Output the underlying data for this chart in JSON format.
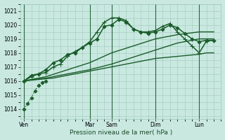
{
  "xlabel": "Pression niveau de la mer( hPa )",
  "bg_color": "#c8e8e0",
  "grid_color": "#9fc8bc",
  "line_color": "#1a5c2a",
  "ylim": [
    1013.3,
    1021.5
  ],
  "yticks": [
    1014,
    1015,
    1016,
    1017,
    1018,
    1019,
    1020,
    1021
  ],
  "xtick_labels": [
    "Ven",
    "Mar",
    "Sam",
    "Dim",
    "Lun"
  ],
  "xtick_positions": [
    0,
    9,
    12,
    18,
    24
  ],
  "vlines": [
    0,
    9,
    12,
    18,
    24
  ],
  "xlim": [
    -0.5,
    27
  ],
  "series": [
    {
      "x": [
        0,
        1,
        2,
        3,
        4,
        5,
        6,
        7,
        8,
        9,
        10,
        11,
        12,
        13,
        14,
        15,
        16,
        17,
        18,
        19,
        20,
        21,
        22,
        23,
        24,
        25,
        26
      ],
      "y": [
        1016.0,
        1016.05,
        1016.1,
        1016.15,
        1016.2,
        1016.3,
        1016.4,
        1016.5,
        1016.6,
        1016.7,
        1016.8,
        1016.9,
        1017.0,
        1017.1,
        1017.2,
        1017.3,
        1017.4,
        1017.5,
        1017.6,
        1017.65,
        1017.7,
        1017.75,
        1017.8,
        1017.85,
        1017.9,
        1018.0,
        1018.0
      ],
      "style": "-",
      "marker": null,
      "markersize": 0,
      "linewidth": 1.0
    },
    {
      "x": [
        0,
        3,
        6,
        9,
        12,
        15,
        18,
        21,
        24,
        26
      ],
      "y": [
        1016.0,
        1016.2,
        1016.5,
        1016.8,
        1017.2,
        1017.7,
        1018.2,
        1018.7,
        1019.0,
        1019.0
      ],
      "style": "-",
      "marker": null,
      "markersize": 0,
      "linewidth": 1.0
    },
    {
      "x": [
        0,
        3,
        6,
        9,
        12,
        15,
        18,
        21,
        24,
        26
      ],
      "y": [
        1016.0,
        1016.3,
        1016.8,
        1017.3,
        1018.0,
        1018.5,
        1019.0,
        1019.3,
        1019.5,
        1019.5
      ],
      "style": "-",
      "marker": null,
      "markersize": 0,
      "linewidth": 1.0
    },
    {
      "x": [
        0,
        1,
        2,
        3,
        4,
        5,
        6,
        7,
        8,
        9,
        10,
        11,
        12,
        13,
        14,
        15,
        16,
        17,
        18,
        19,
        20,
        21,
        22,
        23,
        24,
        25,
        26
      ],
      "y": [
        1016.0,
        1016.4,
        1016.5,
        1016.8,
        1017.3,
        1017.5,
        1017.9,
        1018.0,
        1018.4,
        1018.7,
        1019.0,
        1019.9,
        1020.0,
        1020.4,
        1020.2,
        1019.7,
        1019.5,
        1019.4,
        1019.5,
        1019.7,
        1020.0,
        1019.8,
        1019.4,
        1019.0,
        1018.8,
        1018.9,
        1018.9
      ],
      "style": "-",
      "marker": "D",
      "markersize": 2.5,
      "linewidth": 1.1
    },
    {
      "x": [
        0,
        1,
        2,
        3,
        4,
        5,
        6,
        7,
        8,
        9,
        10,
        11,
        12,
        13,
        14,
        15,
        16,
        17,
        18,
        19,
        20,
        21,
        22,
        23,
        24,
        25,
        26
      ],
      "y": [
        1016.0,
        1016.3,
        1016.5,
        1016.6,
        1017.0,
        1017.2,
        1017.8,
        1018.1,
        1018.4,
        1018.8,
        1019.5,
        1020.2,
        1020.5,
        1020.5,
        1020.3,
        1019.7,
        1019.5,
        1019.5,
        1019.6,
        1019.9,
        1020.1,
        1019.5,
        1019.0,
        1018.5,
        1018.0,
        1018.85,
        1018.9
      ],
      "style": "-",
      "marker": "+",
      "markersize": 4,
      "linewidth": 1.1
    },
    {
      "x": [
        0,
        0.5,
        1.0,
        1.5,
        2.0,
        2.5,
        3.0
      ],
      "y": [
        1014.0,
        1014.4,
        1014.8,
        1015.3,
        1015.7,
        1015.9,
        1016.0
      ],
      "style": ":",
      "marker": "D",
      "markersize": 2.5,
      "linewidth": 1.0
    }
  ]
}
